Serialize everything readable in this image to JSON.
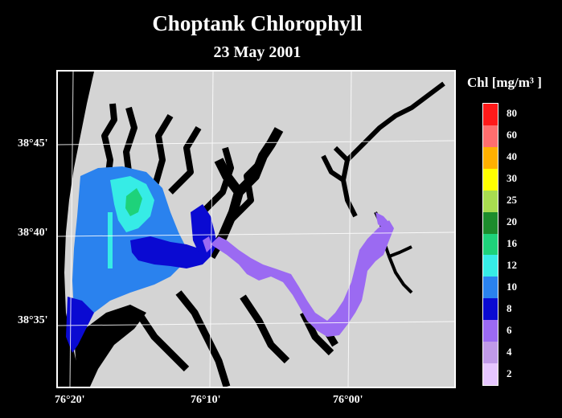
{
  "title": "Choptank Chlorophyll",
  "subtitle": "23 May 2001",
  "legend": {
    "title": "Chl [mg/m³ ]",
    "levels": [
      {
        "label": "80",
        "color": "#ff1a1a"
      },
      {
        "label": "60",
        "color": "#ff6e6e"
      },
      {
        "label": "40",
        "color": "#ffb000"
      },
      {
        "label": "30",
        "color": "#ffff00"
      },
      {
        "label": "25",
        "color": "#a8dc50"
      },
      {
        "label": "20",
        "color": "#1c8c2c"
      },
      {
        "label": "16",
        "color": "#1ed27a"
      },
      {
        "label": "12",
        "color": "#36ece6"
      },
      {
        "label": "10",
        "color": "#2a82ee"
      },
      {
        "label": "8",
        "color": "#0a0ad2"
      },
      {
        "label": "6",
        "color": "#9b6af2"
      },
      {
        "label": "4",
        "color": "#c09ae8"
      },
      {
        "label": "2",
        "color": "#e6c6ff"
      }
    ]
  },
  "latitude_labels": [
    "38°45'",
    "38°40'",
    "38°35'"
  ],
  "longitude_labels": [
    "76°20'",
    "76°10'",
    "76°00'"
  ],
  "colors": {
    "land": "#d4d4d4",
    "water_nodata": "#000000",
    "gridline": "#ffffff"
  }
}
